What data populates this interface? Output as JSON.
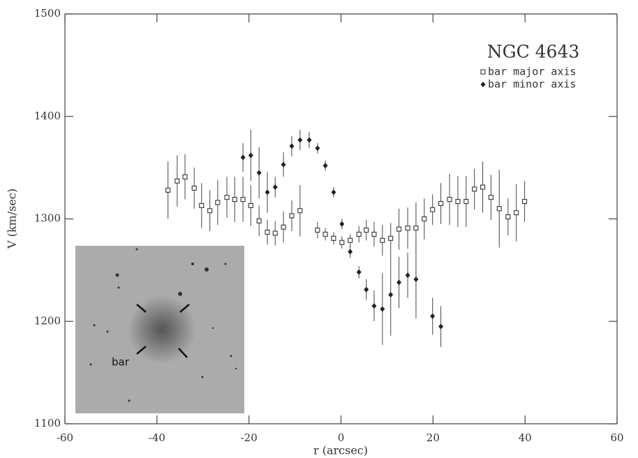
{
  "chart_data": {
    "type": "scatter",
    "title": "NGC 4643",
    "x_label": "r (arcsec)",
    "y_label": "V (km/sec)",
    "inset_label": "bar",
    "xlim": [
      -60,
      60
    ],
    "ylim": [
      1100,
      1500
    ],
    "xticks": [
      -60,
      -40,
      -20,
      0,
      20,
      40,
      60
    ],
    "yticks": [
      1100,
      1200,
      1300,
      1400,
      1500
    ],
    "legend": "upper right",
    "series": [
      {
        "name": "bar major axis",
        "marker": "open-square",
        "color": "#333333",
        "x": [
          -37.6,
          -35.6,
          -33.9,
          -31.9,
          -30.3,
          -28.5,
          -26.8,
          -24.8,
          -23.1,
          -21.3,
          -19.6,
          -17.8,
          -16.0,
          -14.3,
          -12.5,
          -10.7,
          -8.9,
          -5.1,
          -3.4,
          -1.6,
          0.2,
          2.0,
          3.9,
          5.5,
          7.2,
          9.0,
          10.8,
          12.6,
          14.5,
          16.3,
          18.1,
          19.9,
          21.7,
          23.6,
          25.4,
          27.2,
          29.0,
          30.8,
          32.6,
          34.4,
          36.3,
          38.1,
          39.9
        ],
        "values": [
          1328,
          1337,
          1341,
          1330,
          1313,
          1308,
          1316,
          1321,
          1319,
          1319,
          1313,
          1298,
          1287,
          1286,
          1292,
          1303,
          1308,
          1289,
          1285,
          1281,
          1277,
          1279,
          1285,
          1289,
          1285,
          1279,
          1281,
          1290,
          1291,
          1291,
          1300,
          1309,
          1315,
          1319,
          1317,
          1317,
          1329,
          1331,
          1321,
          1310,
          1302,
          1306,
          1317
        ],
        "errors": [
          28,
          25,
          22,
          20,
          22,
          20,
          22,
          20,
          22,
          22,
          20,
          15,
          12,
          12,
          15,
          15,
          25,
          8,
          6,
          6,
          6,
          6,
          8,
          10,
          12,
          15,
          15,
          20,
          20,
          25,
          20,
          15,
          20,
          25,
          25,
          25,
          20,
          25,
          22,
          38,
          18,
          28,
          20
        ]
      },
      {
        "name": "bar minor axis",
        "marker": "filled-diamond",
        "color": "#222222",
        "x": [
          -21.3,
          -19.6,
          -17.8,
          -16.0,
          -14.3,
          -12.5,
          -10.7,
          -8.9,
          -6.9,
          -5.1,
          -3.4,
          -1.6,
          0.2,
          2.0,
          3.9,
          5.5,
          7.2,
          9.0,
          10.8,
          12.6,
          14.5,
          16.3,
          19.9,
          21.7
        ],
        "values": [
          1360,
          1362,
          1345,
          1326,
          1331,
          1353,
          1371,
          1377,
          1377,
          1369,
          1352,
          1326,
          1295,
          1268,
          1248,
          1231,
          1215,
          1212,
          1226,
          1238,
          1245,
          1241,
          1205,
          1195
        ],
        "errors": [
          14,
          25,
          25,
          20,
          10,
          12,
          10,
          10,
          8,
          5,
          5,
          5,
          5,
          6,
          6,
          10,
          15,
          35,
          40,
          25,
          22,
          38,
          18,
          20
        ]
      }
    ]
  }
}
